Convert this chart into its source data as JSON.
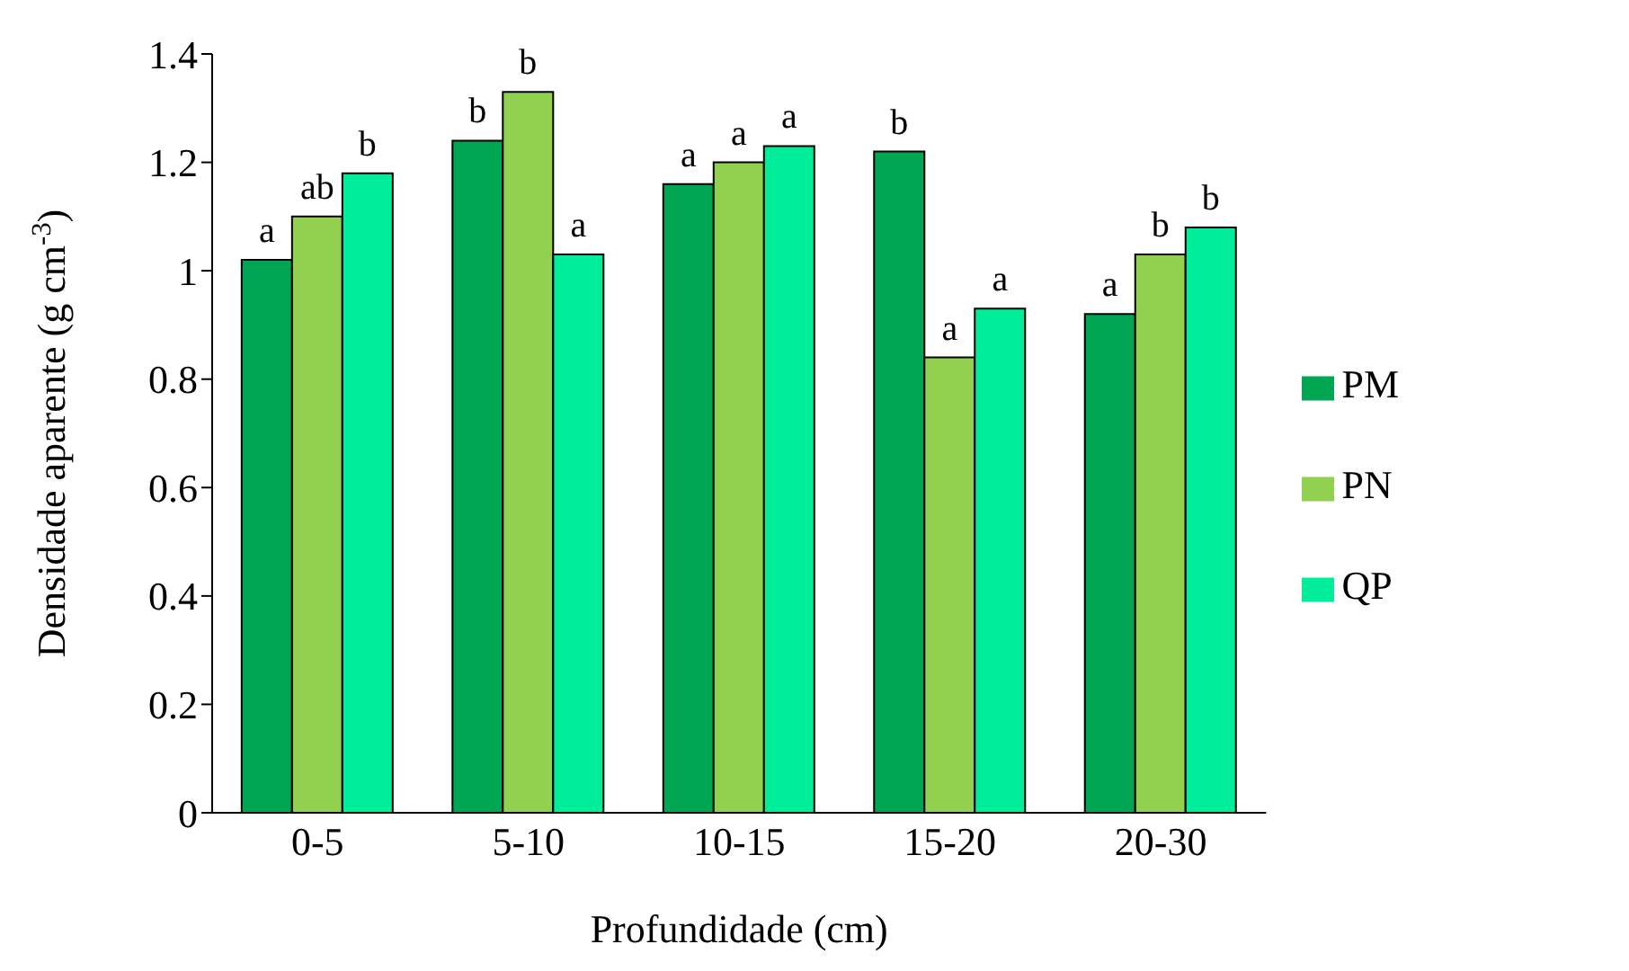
{
  "chart_data": {
    "type": "bar",
    "xlabel": "Profundidade (cm)",
    "ylabel": "Densidade aparente (g cm$^{-3}$)",
    "categories": [
      "0-5",
      "5-10",
      "10-15",
      "15-20",
      "20-30"
    ],
    "series": [
      {
        "name": "PM",
        "color": "#00a651",
        "values": [
          1.02,
          1.24,
          1.16,
          1.22,
          0.92
        ],
        "value_labels": [
          "a",
          "b",
          "a",
          "b",
          "a"
        ]
      },
      {
        "name": "PN",
        "color": "#92d050",
        "values": [
          1.1,
          1.33,
          1.2,
          0.84,
          1.03
        ],
        "value_labels": [
          "ab",
          "b",
          "a",
          "a",
          "b"
        ]
      },
      {
        "name": "QP",
        "color": "#00ee99",
        "values": [
          1.18,
          1.03,
          1.23,
          0.93,
          1.08
        ],
        "value_labels": [
          "b",
          "a",
          "a",
          "a",
          "b"
        ]
      }
    ],
    "ylim": [
      0,
      1.4
    ],
    "yticks": [
      0,
      0.2,
      0.4,
      0.6,
      0.8,
      1,
      1.2,
      1.4
    ],
    "grid": false,
    "legend": "right"
  }
}
